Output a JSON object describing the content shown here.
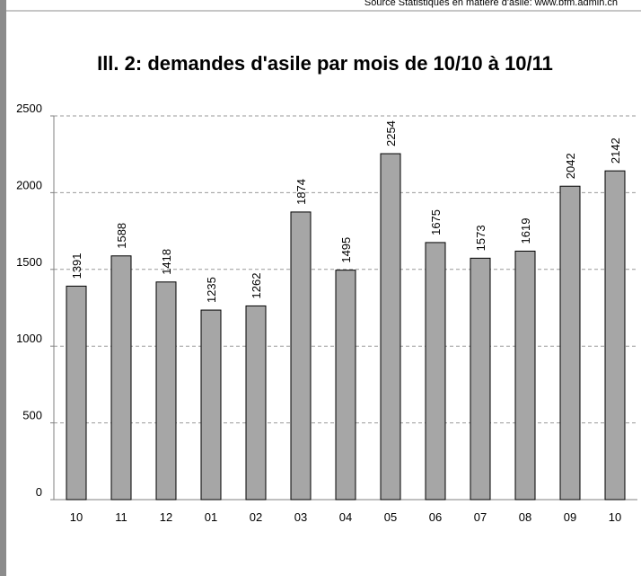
{
  "source": "Source Statistiques en matière d'asile: www.bfm.admin.ch",
  "chart_data": {
    "type": "bar",
    "title": "Ill. 2: demandes d'asile par mois de 10/10 à 10/11",
    "categories": [
      "10",
      "11",
      "12",
      "01",
      "02",
      "03",
      "04",
      "05",
      "06",
      "07",
      "08",
      "09",
      "10"
    ],
    "values": [
      1391,
      1588,
      1418,
      1235,
      1262,
      1874,
      1495,
      2254,
      1675,
      1573,
      1619,
      2042,
      2142
    ],
    "color": "#a6a6a6",
    "ylim": [
      0,
      2500
    ],
    "yticks": [
      0,
      500,
      1000,
      1500,
      2000,
      2500
    ],
    "grid": true
  }
}
